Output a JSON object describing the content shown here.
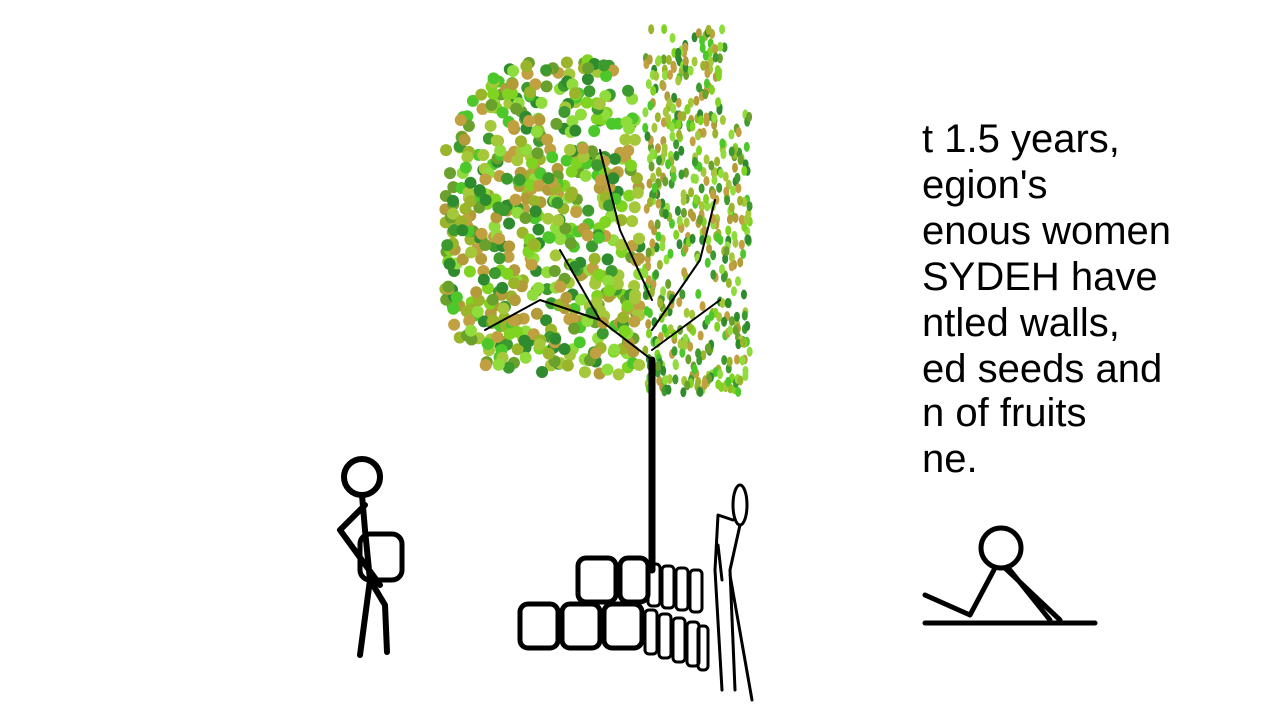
{
  "caption": {
    "lines": [
      "t 1.5 years,",
      "egion's",
      "enous women",
      "SYDEH have",
      "ntled walls,",
      "ed seeds and",
      "n of fruits",
      "ne."
    ]
  }
}
